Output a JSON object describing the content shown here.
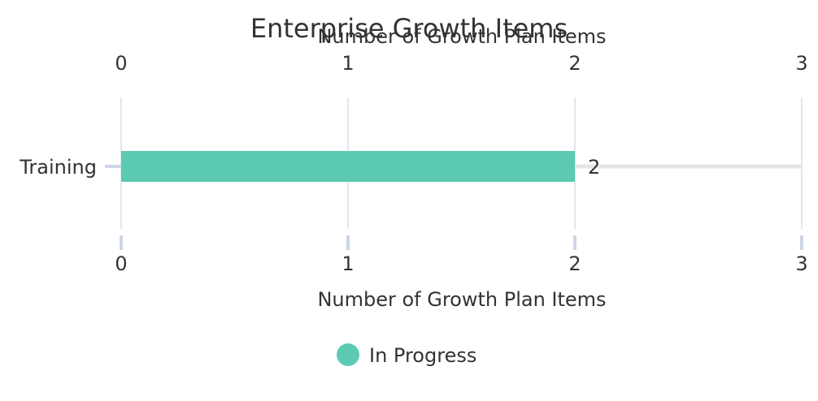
{
  "chart_data": {
    "type": "bar",
    "orientation": "horizontal",
    "title": "Enterprise Growth Items",
    "xlabel": "Number of Growth Plan Items",
    "ylabel": "",
    "categories": [
      "Training"
    ],
    "series": [
      {
        "name": "In Progress",
        "values": [
          2
        ],
        "color": "#5ccab3"
      }
    ],
    "xlim": [
      0,
      3
    ],
    "x_ticks": [
      0,
      1,
      2,
      3
    ],
    "data_labels": [
      "2"
    ],
    "grid": true,
    "legend_position": "bottom",
    "axis_ticks_top_and_bottom": true
  }
}
